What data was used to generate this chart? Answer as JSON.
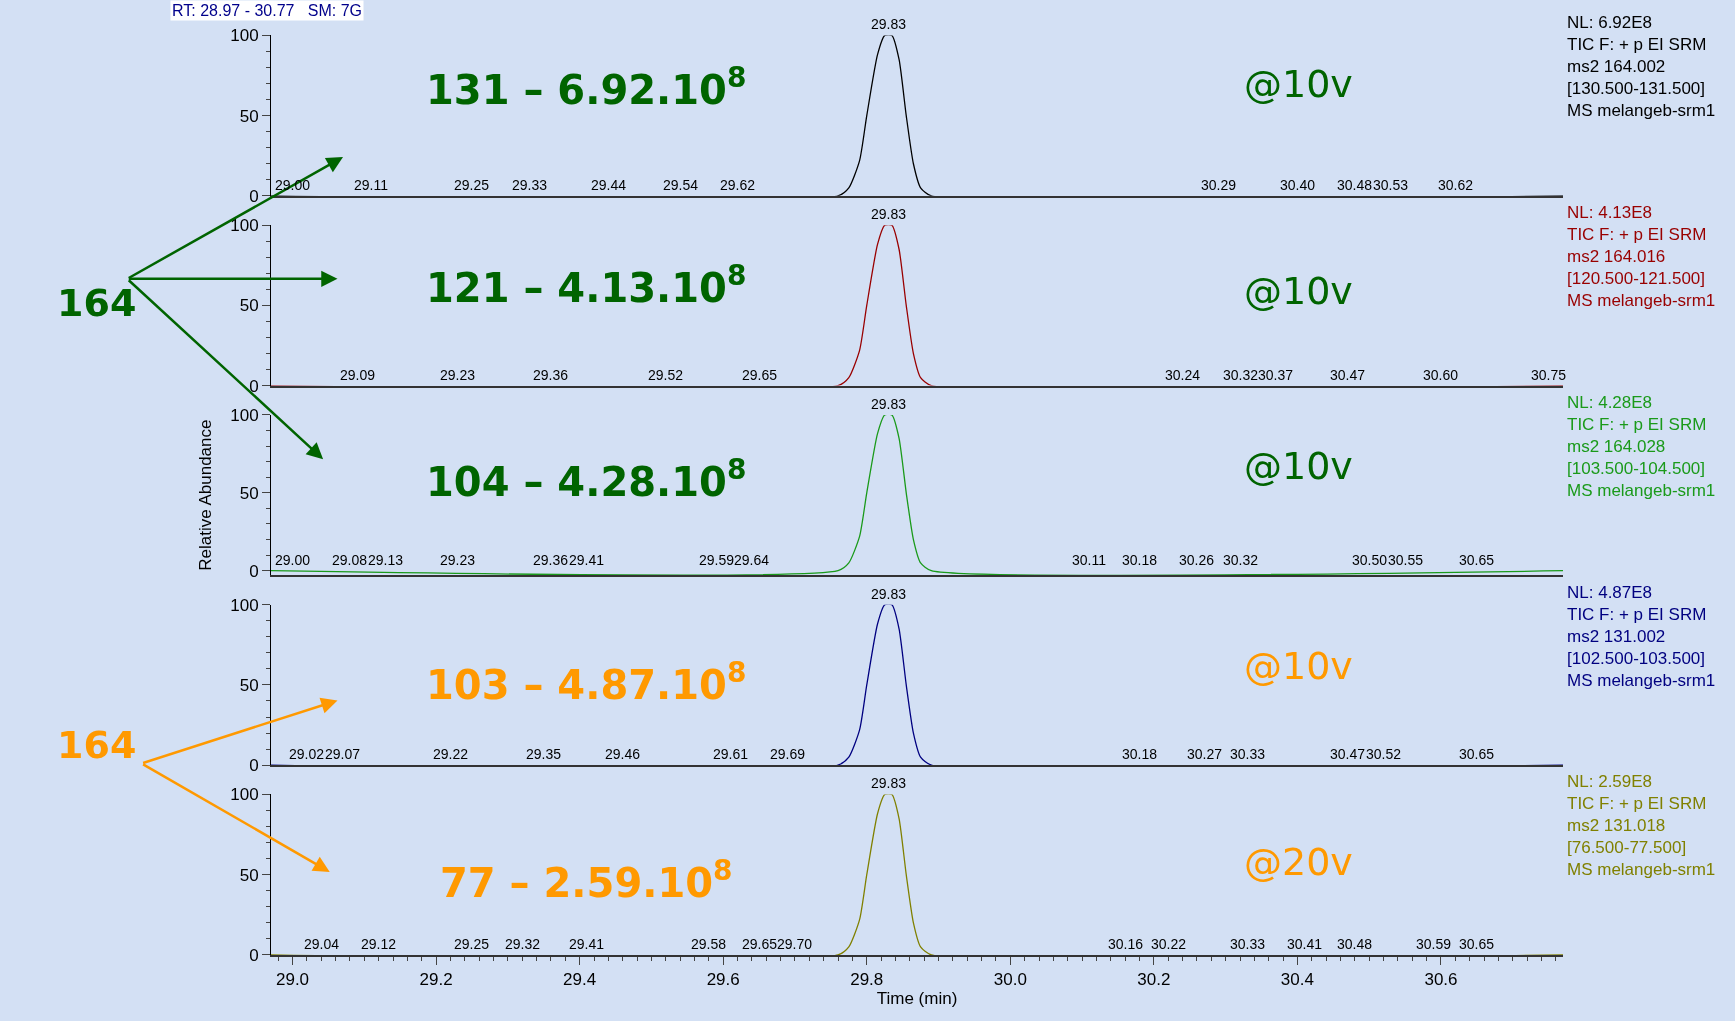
{
  "chart_data": [
    {
      "type": "line",
      "x": [
        28.97,
        29.76,
        29.775,
        29.79,
        29.8,
        29.815,
        29.825,
        29.835,
        29.845,
        29.855,
        29.865,
        29.875,
        29.89,
        30.77
      ],
      "series": [
        {
          "color": "#000000",
          "values": [
            0,
            0,
            5,
            22,
            50,
            88,
            100,
            100,
            85,
            50,
            20,
            5,
            0,
            0
          ]
        }
      ],
      "xlim": [
        28.97,
        30.77
      ],
      "ylim": [
        0,
        100
      ],
      "yticks": [
        0,
        50,
        100
      ],
      "tick_labels": "y",
      "grid": false,
      "annotations": [
        "131 – 6.92.10$^{8}$",
        "@10v",
        "NL: 6.92E8\nTIC F: + p EI SRM\nms2 164.002\n[130.500-131.500]\nMS melangeb-srm1",
        "164",
        "RT: 28.97 - 30.77   SM: 7G",
        {
          "text": "29.83",
          "x": 29.83,
          "y": 100
        },
        {
          "text": "29.00",
          "x": 29.0,
          "y": 0
        },
        {
          "text": "29.11",
          "x": 29.11,
          "y": 0
        },
        {
          "text": "29.25",
          "x": 29.25,
          "y": 0
        },
        {
          "text": "29.33",
          "x": 29.33,
          "y": 0
        },
        {
          "text": "29.44",
          "x": 29.44,
          "y": 0
        },
        {
          "text": "29.54",
          "x": 29.54,
          "y": 0
        },
        {
          "text": "29.62",
          "x": 29.62,
          "y": 0
        },
        {
          "text": "30.29",
          "x": 30.29,
          "y": 0
        },
        {
          "text": "30.40",
          "x": 30.4,
          "y": 0
        },
        {
          "text": "30.48",
          "x": 30.48,
          "y": 0
        },
        {
          "text": "30.53",
          "x": 30.53,
          "y": 0
        },
        {
          "text": "30.62",
          "x": 30.62,
          "y": 0
        }
      ]
    },
    {
      "type": "line",
      "x": [
        28.97,
        29.76,
        29.775,
        29.79,
        29.8,
        29.815,
        29.825,
        29.835,
        29.845,
        29.855,
        29.865,
        29.875,
        29.89,
        30.77
      ],
      "series": [
        {
          "color": "#990000",
          "values": [
            0,
            0,
            5,
            22,
            50,
            88,
            100,
            100,
            85,
            50,
            20,
            5,
            0,
            0
          ]
        }
      ],
      "xlim": [
        28.97,
        30.77
      ],
      "ylim": [
        0,
        100
      ],
      "yticks": [
        0,
        50,
        100
      ],
      "tick_labels": "y",
      "grid": false,
      "annotations": [
        "121 – 4.13.10$^{8}$",
        "@10v",
        "NL: 4.13E8\nTIC F: + p EI SRM\nms2 164.016\n[120.500-121.500]\nMS melangeb-srm1",
        {
          "text": "29.83",
          "x": 29.83,
          "y": 100
        },
        {
          "text": "29.09",
          "x": 29.09,
          "y": 0
        },
        {
          "text": "29.23",
          "x": 29.23,
          "y": 0
        },
        {
          "text": "29.36",
          "x": 29.36,
          "y": 0
        },
        {
          "text": "29.52",
          "x": 29.52,
          "y": 0
        },
        {
          "text": "29.65",
          "x": 29.65,
          "y": 0
        },
        {
          "text": "30.24",
          "x": 30.24,
          "y": 0
        },
        {
          "text": "30.32",
          "x": 30.32,
          "y": 0
        },
        {
          "text": "30.37",
          "x": 30.37,
          "y": 0
        },
        {
          "text": "30.47",
          "x": 30.47,
          "y": 0
        },
        {
          "text": "30.60",
          "x": 30.6,
          "y": 0
        },
        {
          "text": "30.75",
          "x": 30.75,
          "y": 0
        }
      ]
    },
    {
      "type": "line",
      "x": [
        28.97,
        29.76,
        29.775,
        29.79,
        29.8,
        29.815,
        29.825,
        29.835,
        29.845,
        29.855,
        29.865,
        29.875,
        29.89,
        30.77
      ],
      "series": [
        {
          "color": "#1a9a1a",
          "values": [
            0,
            0,
            5,
            22,
            50,
            88,
            100,
            100,
            85,
            50,
            20,
            5,
            0,
            0
          ]
        }
      ],
      "xlim": [
        28.97,
        30.77
      ],
      "ylim": [
        -3,
        100
      ],
      "yticks": [
        0,
        50,
        100
      ],
      "tick_labels": "y",
      "grid": false,
      "ylabel": "Relative Abundance",
      "annotations": [
        "104 – 4.28.10$^{8}$",
        "@10v",
        "NL: 4.28E8\nTIC F: + p EI SRM\nms2 164.028\n[103.500-104.500]\nMS melangeb-srm1",
        {
          "text": "29.83",
          "x": 29.83,
          "y": 100
        },
        {
          "text": "29.00",
          "x": 29.0,
          "y": 0
        },
        {
          "text": "29.08",
          "x": 29.08,
          "y": 0
        },
        {
          "text": "29.13",
          "x": 29.13,
          "y": 0
        },
        {
          "text": "29.23",
          "x": 29.23,
          "y": 0
        },
        {
          "text": "29.36",
          "x": 29.36,
          "y": 0
        },
        {
          "text": "29.41",
          "x": 29.41,
          "y": 0
        },
        {
          "text": "29.59",
          "x": 29.59,
          "y": 0
        },
        {
          "text": "29.64",
          "x": 29.64,
          "y": 0
        },
        {
          "text": "30.11",
          "x": 30.11,
          "y": 0
        },
        {
          "text": "30.18",
          "x": 30.18,
          "y": 0
        },
        {
          "text": "30.26",
          "x": 30.26,
          "y": 0
        },
        {
          "text": "30.32",
          "x": 30.32,
          "y": 0
        },
        {
          "text": "30.50",
          "x": 30.5,
          "y": 0
        },
        {
          "text": "30.55",
          "x": 30.55,
          "y": 0
        },
        {
          "text": "30.65",
          "x": 30.65,
          "y": 0
        }
      ]
    },
    {
      "type": "line",
      "x": [
        28.97,
        29.76,
        29.775,
        29.79,
        29.8,
        29.815,
        29.825,
        29.835,
        29.845,
        29.855,
        29.865,
        29.875,
        29.89,
        30.77
      ],
      "series": [
        {
          "color": "#000080",
          "values": [
            0,
            0,
            5,
            22,
            50,
            88,
            100,
            100,
            85,
            50,
            20,
            5,
            0,
            0
          ]
        }
      ],
      "xlim": [
        28.97,
        30.77
      ],
      "ylim": [
        0,
        100
      ],
      "yticks": [
        0,
        50,
        100
      ],
      "tick_labels": "y",
      "grid": false,
      "annotations": [
        "103 – 4.87.10$^{8}$",
        "@10v",
        "NL: 4.87E8\nTIC F: + p EI SRM\nms2 131.002\n[102.500-103.500]\nMS melangeb-srm1",
        "164",
        {
          "text": "29.83",
          "x": 29.83,
          "y": 100
        },
        {
          "text": "29.02",
          "x": 29.02,
          "y": 0
        },
        {
          "text": "29.07",
          "x": 29.07,
          "y": 0
        },
        {
          "text": "29.22",
          "x": 29.22,
          "y": 0
        },
        {
          "text": "29.35",
          "x": 29.35,
          "y": 0
        },
        {
          "text": "29.46",
          "x": 29.46,
          "y": 0
        },
        {
          "text": "29.61",
          "x": 29.61,
          "y": 0
        },
        {
          "text": "29.69",
          "x": 29.69,
          "y": 0
        },
        {
          "text": "30.18",
          "x": 30.18,
          "y": 0
        },
        {
          "text": "30.27",
          "x": 30.27,
          "y": 0
        },
        {
          "text": "30.33",
          "x": 30.33,
          "y": 0
        },
        {
          "text": "30.47",
          "x": 30.47,
          "y": 0
        },
        {
          "text": "30.52",
          "x": 30.52,
          "y": 0
        },
        {
          "text": "30.65",
          "x": 30.65,
          "y": 0
        }
      ]
    },
    {
      "type": "line",
      "x": [
        28.97,
        29.76,
        29.775,
        29.79,
        29.8,
        29.815,
        29.825,
        29.835,
        29.845,
        29.855,
        29.865,
        29.875,
        29.89,
        30.77
      ],
      "series": [
        {
          "color": "#808000",
          "values": [
            0,
            0,
            5,
            22,
            50,
            88,
            100,
            100,
            85,
            50,
            20,
            5,
            0,
            0
          ]
        }
      ],
      "xlim": [
        28.97,
        30.77
      ],
      "ylim": [
        0,
        100
      ],
      "yticks": [
        0,
        50,
        100
      ],
      "grid": false,
      "xlabel": "Time (min)",
      "xticks": [
        {
          "value": 29.0,
          "label": "29.0"
        },
        {
          "value": 29.2,
          "label": "29.2"
        },
        {
          "value": 29.4,
          "label": "29.4"
        },
        {
          "value": 29.6,
          "label": "29.6"
        },
        {
          "value": 29.8,
          "label": "29.8"
        },
        {
          "value": 30.0,
          "label": "30.0"
        },
        {
          "value": 30.2,
          "label": "30.2"
        },
        {
          "value": 30.4,
          "label": "30.4"
        },
        {
          "value": 30.6,
          "label": "30.6"
        }
      ],
      "annotations": [
        "77 – 2.59.10$^{8}$",
        "@20v",
        "NL: 2.59E8\nTIC F: + p EI SRM\nms2 131.018\n[76.500-77.500]\nMS melangeb-srm1",
        {
          "text": "29.83",
          "x": 29.83,
          "y": 100
        },
        {
          "text": "29.04",
          "x": 29.04,
          "y": 0
        },
        {
          "text": "29.12",
          "x": 29.12,
          "y": 0
        },
        {
          "text": "29.25",
          "x": 29.25,
          "y": 0
        },
        {
          "text": "29.32",
          "x": 29.32,
          "y": 0
        },
        {
          "text": "29.41",
          "x": 29.41,
          "y": 0
        },
        {
          "text": "29.58",
          "x": 29.58,
          "y": 0
        },
        {
          "text": "29.65",
          "x": 29.65,
          "y": 0
        },
        {
          "text": "29.70",
          "x": 29.7,
          "y": 0
        },
        {
          "text": "30.16",
          "x": 30.16,
          "y": 0
        },
        {
          "text": "30.22",
          "x": 30.22,
          "y": 0
        },
        {
          "text": "30.33",
          "x": 30.33,
          "y": 0
        },
        {
          "text": "30.41",
          "x": 30.41,
          "y": 0
        },
        {
          "text": "30.48",
          "x": 30.48,
          "y": 0
        },
        {
          "text": "30.59",
          "x": 30.59,
          "y": 0
        },
        {
          "text": "30.65",
          "x": 30.65,
          "y": 0
        }
      ]
    }
  ]
}
